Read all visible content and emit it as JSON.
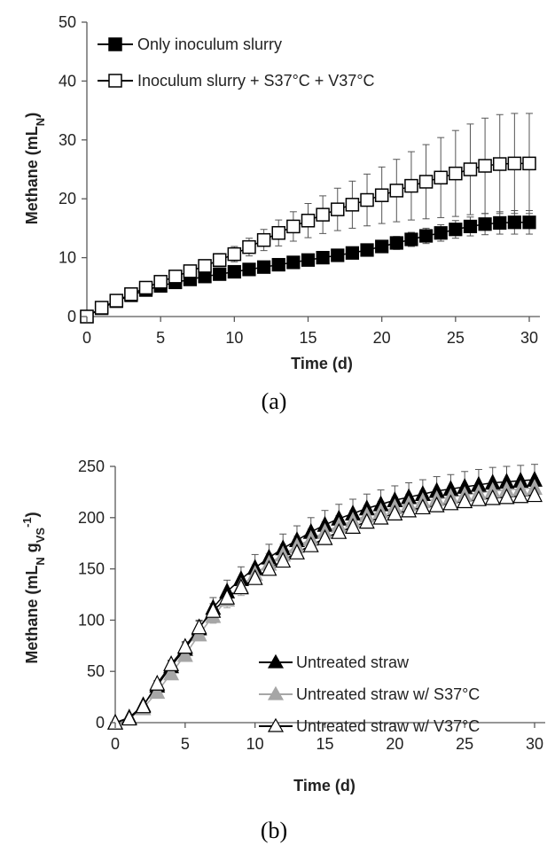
{
  "chart_data": [
    {
      "panel": "(a)",
      "type": "line",
      "xlabel": "Time (d)",
      "ylabel": "Methane (mL",
      "ylabel_sub": "N",
      "ylabel_close": ")",
      "xlim": [
        0,
        30
      ],
      "ylim": [
        0,
        50
      ],
      "xticks": [
        0,
        5,
        10,
        15,
        20,
        25,
        30
      ],
      "yticks": [
        0,
        10,
        20,
        30,
        40,
        50
      ],
      "grid": false,
      "legend_position": "top-left",
      "x": [
        0,
        1,
        2,
        3,
        4,
        5,
        6,
        7,
        8,
        9,
        10,
        11,
        12,
        13,
        14,
        15,
        16,
        17,
        18,
        19,
        20,
        21,
        22,
        23,
        24,
        25,
        26,
        27,
        28,
        29,
        30
      ],
      "series": [
        {
          "name": "Only inoculum slurry",
          "marker": "square-filled",
          "color": "#000000",
          "values": [
            0,
            1.4,
            2.6,
            3.6,
            4.5,
            5.2,
            5.8,
            6.3,
            6.8,
            7.2,
            7.6,
            8.0,
            8.4,
            8.8,
            9.2,
            9.6,
            10.0,
            10.4,
            10.8,
            11.3,
            11.9,
            12.5,
            13.1,
            13.7,
            14.2,
            14.8,
            15.3,
            15.7,
            15.9,
            16.0,
            16.0
          ],
          "errors": [
            0,
            0.2,
            0.3,
            0.3,
            0.4,
            0.4,
            0.5,
            0.5,
            0.5,
            0.5,
            0.6,
            0.6,
            0.7,
            0.7,
            0.8,
            0.8,
            0.8,
            0.9,
            0.9,
            1.0,
            1.0,
            1.1,
            1.2,
            1.3,
            1.4,
            1.5,
            1.6,
            1.8,
            1.9,
            2.0,
            2.0
          ]
        },
        {
          "name": "Inoculum slurry + S37°C + V37°C",
          "marker": "square-open",
          "color": "#000000",
          "values": [
            0,
            1.5,
            2.7,
            3.8,
            4.9,
            5.9,
            6.8,
            7.7,
            8.6,
            9.6,
            10.6,
            11.8,
            13.0,
            14.2,
            15.3,
            16.3,
            17.3,
            18.2,
            19.0,
            19.8,
            20.6,
            21.4,
            22.2,
            22.9,
            23.6,
            24.3,
            25.0,
            25.6,
            25.9,
            26.0,
            26.0
          ],
          "errors": [
            0,
            0.2,
            0.3,
            0.4,
            0.5,
            0.6,
            0.7,
            0.8,
            0.9,
            1.1,
            1.3,
            1.5,
            1.8,
            2.2,
            2.5,
            2.9,
            3.2,
            3.6,
            4.0,
            4.4,
            4.8,
            5.3,
            5.8,
            6.3,
            6.8,
            7.3,
            7.7,
            8.1,
            8.4,
            8.5,
            8.5
          ]
        }
      ]
    },
    {
      "panel": "(b)",
      "type": "line",
      "xlabel": "Time (d)",
      "ylabel": "Methane (mL",
      "ylabel_sub1": "N",
      "ylabel_mid": " g",
      "ylabel_sub2": "VS",
      "ylabel_sup": "-1",
      "ylabel_close": ")",
      "xlim": [
        0,
        30
      ],
      "ylim": [
        0,
        250
      ],
      "xticks": [
        0,
        5,
        10,
        15,
        20,
        25,
        30
      ],
      "yticks": [
        0,
        50,
        100,
        150,
        200,
        250
      ],
      "grid": false,
      "legend_position": "bottom-right",
      "x": [
        0,
        1,
        2,
        3,
        4,
        5,
        6,
        7,
        8,
        9,
        10,
        11,
        12,
        13,
        14,
        15,
        16,
        17,
        18,
        19,
        20,
        21,
        22,
        23,
        24,
        25,
        26,
        27,
        28,
        29,
        30
      ],
      "series": [
        {
          "name": "Untreated straw",
          "marker": "triangle-filled",
          "color": "#000000",
          "values": [
            0,
            5,
            17,
            36,
            55,
            72,
            92,
            112,
            128,
            140,
            151,
            161,
            170,
            178,
            186,
            193,
            199,
            204,
            209,
            213,
            217,
            220,
            223,
            226,
            228,
            230,
            232,
            234,
            235,
            236,
            237
          ],
          "errors": [
            0,
            1,
            2,
            4,
            5,
            6,
            8,
            10,
            11,
            12,
            13,
            13,
            14,
            14,
            14,
            14,
            14,
            14,
            14,
            14,
            14,
            14,
            14,
            14,
            14,
            15,
            15,
            15,
            15,
            15,
            15
          ]
        },
        {
          "name": "Untreated straw w/ S37°C",
          "marker": "triangle-gray",
          "color": "#a6a6a6",
          "values": [
            0,
            4,
            14,
            30,
            48,
            66,
            86,
            104,
            120,
            133,
            145,
            155,
            164,
            172,
            179,
            186,
            192,
            197,
            202,
            206,
            210,
            213,
            216,
            218,
            220,
            222,
            224,
            226,
            227,
            228,
            229
          ],
          "errors": [
            0,
            1,
            2,
            3,
            4,
            5,
            6,
            7,
            8,
            9,
            9,
            10,
            10,
            10,
            10,
            10,
            10,
            10,
            10,
            10,
            10,
            10,
            10,
            10,
            10,
            10,
            10,
            10,
            10,
            10,
            10
          ]
        },
        {
          "name": "Untreated straw w/ V37°C",
          "marker": "triangle-open",
          "color": "#000000",
          "values": [
            0,
            4,
            16,
            38,
            57,
            74,
            93,
            109,
            122,
            132,
            141,
            150,
            158,
            166,
            173,
            180,
            186,
            191,
            196,
            200,
            204,
            207,
            210,
            212,
            214,
            216,
            218,
            219,
            220,
            221,
            222
          ],
          "errors": [
            0,
            1,
            2,
            3,
            4,
            5,
            6,
            7,
            7,
            8,
            8,
            8,
            8,
            8,
            8,
            8,
            8,
            8,
            8,
            8,
            8,
            8,
            8,
            8,
            8,
            8,
            8,
            8,
            8,
            8,
            8
          ]
        }
      ]
    }
  ]
}
